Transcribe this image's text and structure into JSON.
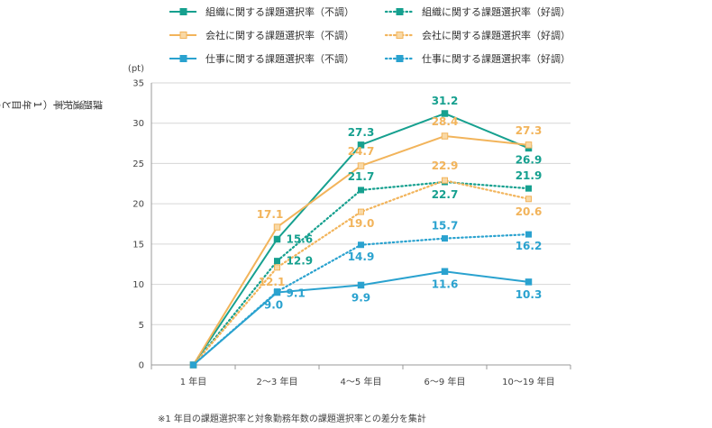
{
  "chart_data": {
    "type": "line",
    "unit": "(pt)",
    "ylabel": "課題選択率（1年目との差分）［ポイント］",
    "ylim": [
      0,
      35
    ],
    "yticks": [
      "0",
      "5",
      "10",
      "15",
      "20",
      "25",
      "30",
      "35"
    ],
    "categories": [
      "1 年目",
      "2〜3 年目",
      "4〜5 年目",
      "6〜9 年目",
      "10〜19 年目"
    ],
    "grid": "horizontal",
    "legend_position": "top",
    "series": [
      {
        "name": "組織に関する課題選択率（不調）",
        "style": "solid",
        "color": "#16a08f",
        "values": [
          0,
          15.6,
          27.3,
          31.2,
          26.9
        ],
        "labels": [
          "",
          "15.6",
          "27.3",
          "31.2",
          "26.9"
        ]
      },
      {
        "name": "会社に関する課題選択率（不調）",
        "style": "solid",
        "color": "#f2b45b",
        "values": [
          0,
          17.1,
          24.7,
          28.4,
          27.3
        ],
        "labels": [
          "",
          "17.1",
          "24.7",
          "28.4",
          "27.3"
        ]
      },
      {
        "name": "仕事に関する課題選択率（不調）",
        "style": "solid",
        "color": "#2aa2cf",
        "values": [
          0,
          9.0,
          9.9,
          11.6,
          10.3
        ],
        "labels": [
          "",
          "9.0",
          "9.9",
          "11.6",
          "10.3"
        ]
      },
      {
        "name": "組織に関する課題選択率（好調）",
        "style": "dotted",
        "color": "#16a08f",
        "values": [
          0,
          12.9,
          21.7,
          22.7,
          21.9
        ],
        "labels": [
          "",
          "12.9",
          "21.7",
          "22.7",
          "21.9"
        ]
      },
      {
        "name": "会社に関する課題選択率（好調）",
        "style": "dotted",
        "color": "#f2b45b",
        "values": [
          0,
          12.1,
          19.0,
          22.9,
          20.6
        ],
        "labels": [
          "",
          "12.1",
          "19.0",
          "22.9",
          "20.6"
        ]
      },
      {
        "name": "仕事に関する課題選択率（好調）",
        "style": "dotted",
        "color": "#2aa2cf",
        "values": [
          0,
          9.1,
          14.9,
          15.7,
          16.2
        ],
        "labels": [
          "",
          "9.1",
          "14.9",
          "15.7",
          "16.2"
        ]
      }
    ]
  },
  "footnote": "※1 年目の課題選択率と対象勤務年数の課題選択率との差分を集計"
}
